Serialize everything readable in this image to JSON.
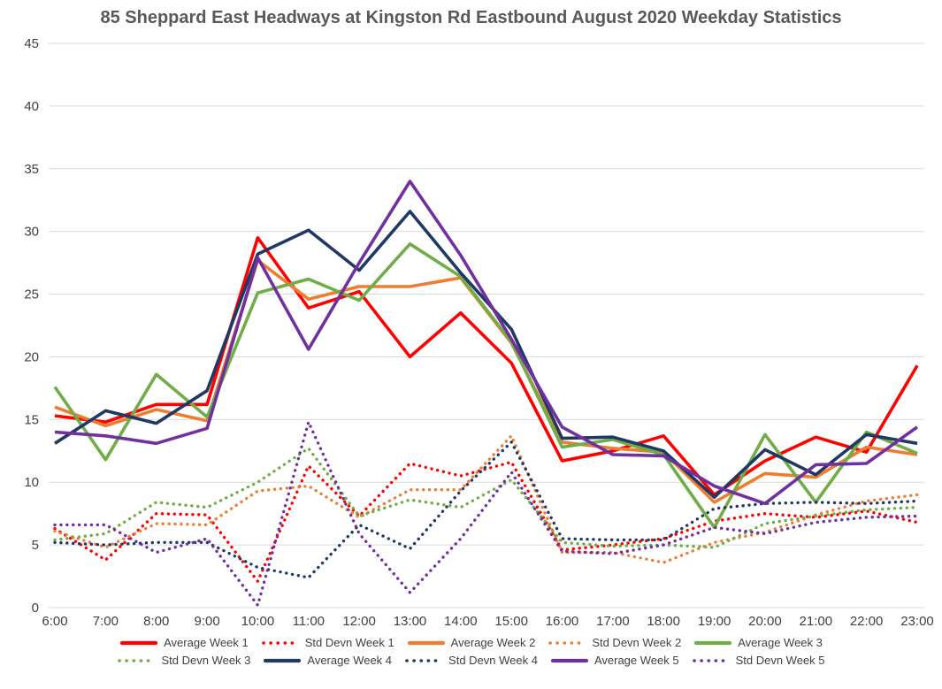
{
  "chart_data": {
    "type": "line",
    "title": "85 Sheppard East Headways at Kingston Rd Eastbound August 2020 Weekday Statistics",
    "xlabel": "",
    "ylabel": "",
    "ylim": [
      0,
      45
    ],
    "y_ticks": [
      0,
      5,
      10,
      15,
      20,
      25,
      30,
      35,
      40,
      45
    ],
    "grid": true,
    "legend_position": "bottom",
    "colors": {
      "background": "#FFFFFF",
      "gridline": "#D9D9D9",
      "axis_label": "#404040",
      "title": "#595959",
      "week1": "#FF0000",
      "week2": "#ED7D31",
      "week3": "#70AD47",
      "week4": "#203864",
      "week5": "#7030A0"
    },
    "categories": [
      "6:00",
      "7:00",
      "8:00",
      "9:00",
      "10:00",
      "11:00",
      "12:00",
      "13:00",
      "14:00",
      "15:00",
      "16:00",
      "17:00",
      "18:00",
      "19:00",
      "20:00",
      "21:00",
      "22:00",
      "23:00"
    ],
    "series": [
      {
        "name": "Average Week 1",
        "color": "#FF0000",
        "style": "solid",
        "values": [
          15.3,
          14.8,
          16.2,
          16.2,
          29.5,
          23.9,
          25.2,
          20.0,
          23.5,
          19.5,
          11.7,
          12.5,
          13.7,
          9.0,
          11.7,
          13.6,
          12.4,
          19.3
        ]
      },
      {
        "name": "Std Devn Week 1",
        "color": "#FF0000",
        "style": "dotted",
        "values": [
          6.3,
          3.8,
          7.5,
          7.4,
          2.1,
          11.3,
          7.3,
          11.5,
          10.5,
          11.6,
          4.6,
          5.0,
          5.5,
          6.9,
          7.5,
          7.2,
          7.7,
          6.8
        ]
      },
      {
        "name": "Average Week 2",
        "color": "#ED7D31",
        "style": "solid",
        "values": [
          16.0,
          14.5,
          15.8,
          14.9,
          27.7,
          24.6,
          25.6,
          25.6,
          26.3,
          21.1,
          13.2,
          12.7,
          12.4,
          8.4,
          10.7,
          10.4,
          12.8,
          12.2
        ]
      },
      {
        "name": "Std Devn Week 2",
        "color": "#ED7D31",
        "style": "dotted",
        "values": [
          6.1,
          4.8,
          6.7,
          6.6,
          9.3,
          9.7,
          7.2,
          9.4,
          9.4,
          13.7,
          4.4,
          4.4,
          3.6,
          5.2,
          6.0,
          7.4,
          8.5,
          9.0
        ]
      },
      {
        "name": "Average Week 3",
        "color": "#70AD47",
        "style": "solid",
        "values": [
          17.6,
          11.8,
          18.6,
          15.2,
          25.1,
          26.2,
          24.5,
          29.0,
          26.4,
          21.2,
          12.8,
          13.4,
          12.2,
          6.4,
          13.8,
          8.4,
          14.0,
          12.3
        ]
      },
      {
        "name": "Std Devn Week 3",
        "color": "#70AD47",
        "style": "dotted",
        "values": [
          5.4,
          5.9,
          8.4,
          8.0,
          10.0,
          12.7,
          7.3,
          8.6,
          8.0,
          10.2,
          5.2,
          4.9,
          5.0,
          4.8,
          6.7,
          7.3,
          7.8,
          8.0
        ]
      },
      {
        "name": "Average Week 4",
        "color": "#203864",
        "style": "solid",
        "values": [
          13.1,
          15.7,
          14.7,
          17.3,
          28.2,
          30.1,
          26.9,
          31.6,
          26.7,
          22.2,
          13.5,
          13.6,
          12.5,
          8.8,
          12.6,
          10.6,
          13.8,
          13.1
        ]
      },
      {
        "name": "Std Devn Week 4",
        "color": "#203864",
        "style": "dotted",
        "values": [
          5.2,
          5.0,
          5.2,
          5.2,
          3.2,
          2.4,
          6.6,
          4.7,
          9.3,
          13.2,
          5.5,
          5.4,
          5.4,
          7.9,
          8.3,
          8.4,
          8.3,
          8.5
        ]
      },
      {
        "name": "Average Week 5",
        "color": "#7030A0",
        "style": "solid",
        "values": [
          14.0,
          13.7,
          13.1,
          14.3,
          27.9,
          20.6,
          27.5,
          34.0,
          28.1,
          21.4,
          14.4,
          12.2,
          12.1,
          9.7,
          8.3,
          11.4,
          11.5,
          14.4
        ]
      },
      {
        "name": "Std Devn Week 5",
        "color": "#7030A0",
        "style": "dotted",
        "values": [
          6.6,
          6.6,
          4.4,
          5.5,
          0.2,
          14.8,
          5.9,
          1.2,
          5.5,
          10.8,
          4.5,
          4.3,
          5.0,
          6.4,
          5.9,
          6.8,
          7.2,
          7.3
        ]
      }
    ],
    "legend_rows": [
      [
        0,
        1,
        2,
        3,
        4
      ],
      [
        5,
        6,
        7,
        8,
        9
      ]
    ]
  }
}
